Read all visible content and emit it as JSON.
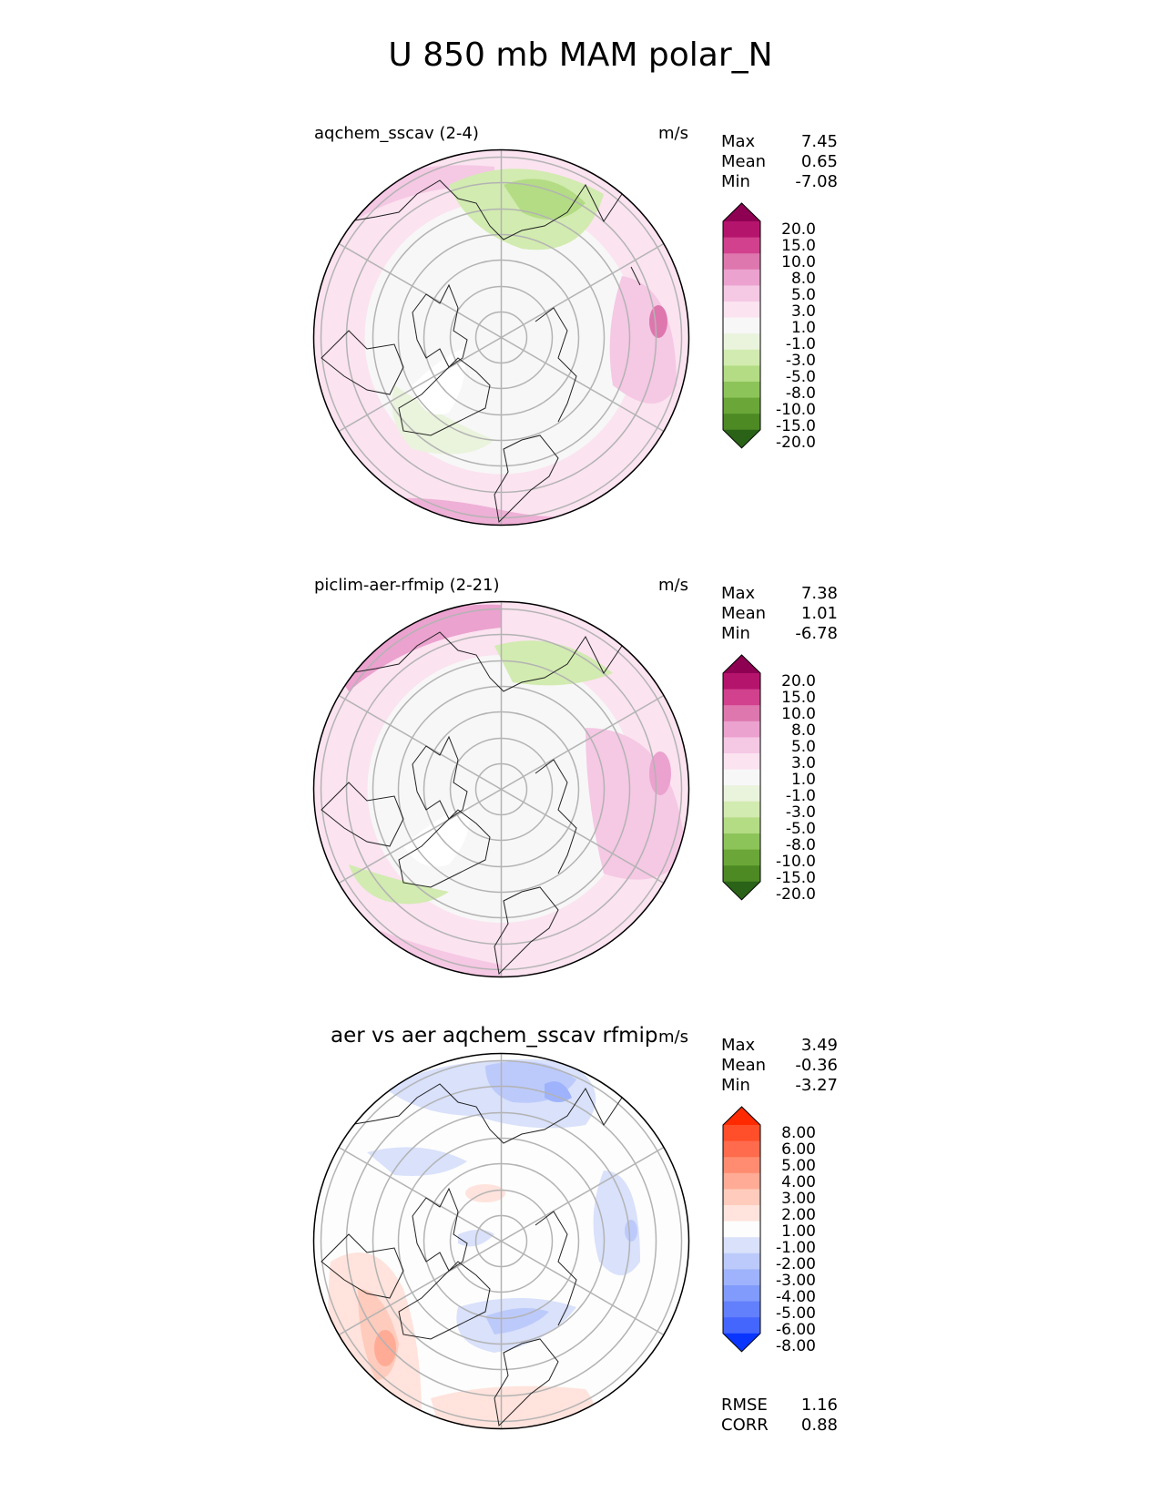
{
  "suptitle": "U 850 mb MAM polar_N",
  "panels": [
    {
      "title": "aqchem_sscav (2-4)",
      "units": "m/s",
      "stats": [
        {
          "label": "Max",
          "value": "7.45"
        },
        {
          "label": "Mean",
          "value": "0.65"
        },
        {
          "label": "Min",
          "value": "-7.08"
        }
      ],
      "colorbar": {
        "labels": [
          "20.0",
          "15.0",
          "10.0",
          "8.0",
          "5.0",
          "3.0",
          "1.0",
          "-1.0",
          "-3.0",
          "-5.0",
          "-8.0",
          "-10.0",
          "-15.0",
          "-20.0"
        ],
        "colors": [
          "#8e0152",
          "#b5146d",
          "#d1418d",
          "#de77ae",
          "#eba2cf",
          "#f5c8e4",
          "#fbe3f0",
          "#f7f7f7",
          "#eaf3dc",
          "#d2ebb0",
          "#b3dc84",
          "#8dc45a",
          "#6aa738",
          "#4d8a24",
          "#2a6317"
        ]
      },
      "fill": "pink"
    },
    {
      "title": "piclim-aer-rfmip (2-21)",
      "units": "m/s",
      "stats": [
        {
          "label": "Max",
          "value": "7.38"
        },
        {
          "label": "Mean",
          "value": "1.01"
        },
        {
          "label": "Min",
          "value": "-6.78"
        }
      ],
      "colorbar": {
        "labels": [
          "20.0",
          "15.0",
          "10.0",
          "8.0",
          "5.0",
          "3.0",
          "1.0",
          "-1.0",
          "-3.0",
          "-5.0",
          "-8.0",
          "-10.0",
          "-15.0",
          "-20.0"
        ],
        "colors": [
          "#8e0152",
          "#b5146d",
          "#d1418d",
          "#de77ae",
          "#eba2cf",
          "#f5c8e4",
          "#fbe3f0",
          "#f7f7f7",
          "#eaf3dc",
          "#d2ebb0",
          "#b3dc84",
          "#8dc45a",
          "#6aa738",
          "#4d8a24",
          "#2a6317"
        ]
      },
      "fill": "pink"
    },
    {
      "title": "aer vs aer aqchem_sscav rfmip",
      "units": "m/s",
      "stats": [
        {
          "label": "Max",
          "value": "3.49"
        },
        {
          "label": "Mean",
          "value": "-0.36"
        },
        {
          "label": "Min",
          "value": "-3.27"
        }
      ],
      "colorbar": {
        "labels": [
          "8.00",
          "6.00",
          "5.00",
          "4.00",
          "3.00",
          "2.00",
          "1.00",
          "-1.00",
          "-2.00",
          "-3.00",
          "-4.00",
          "-5.00",
          "-6.00",
          "-8.00"
        ],
        "colors": [
          "#ff2a00",
          "#ff4e2a",
          "#ff6b4d",
          "#ff8c70",
          "#ffab96",
          "#ffcbbc",
          "#ffe3dc",
          "#fdfdfd",
          "#d9e1fb",
          "#bccafb",
          "#9eb3fb",
          "#809bfb",
          "#6280fb",
          "#4466fd",
          "#0a35ff"
        ]
      },
      "error_stats": [
        {
          "label": "RMSE",
          "value": "1.16"
        },
        {
          "label": "CORR",
          "value": "0.88"
        }
      ],
      "fill": "diff"
    }
  ]
}
